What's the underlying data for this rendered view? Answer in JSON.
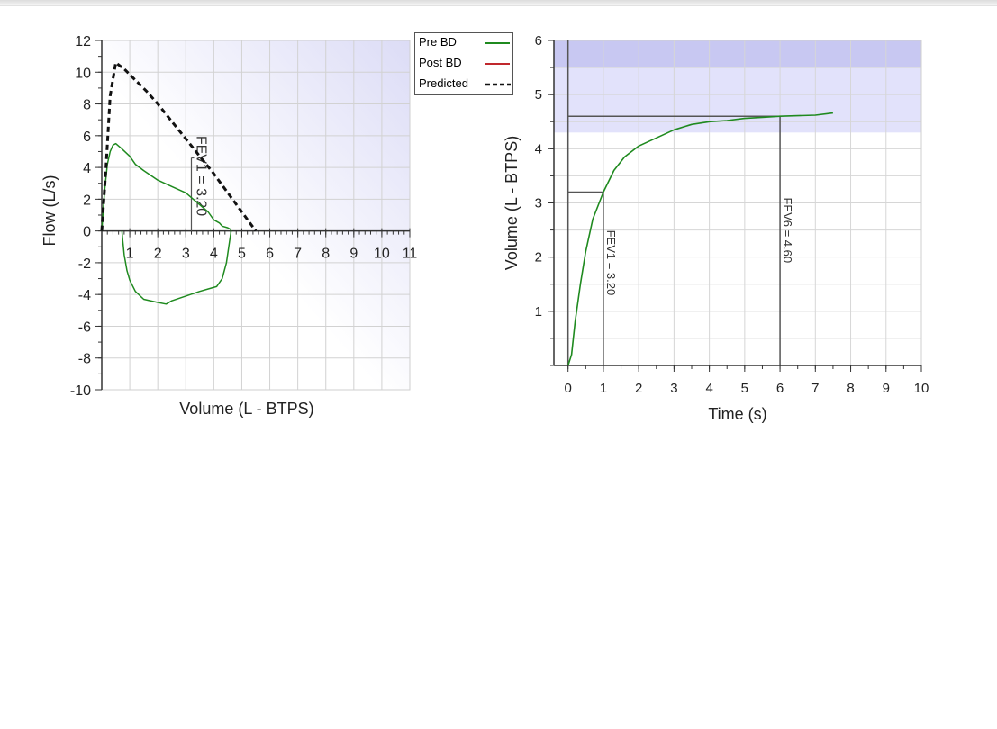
{
  "chart_data": [
    {
      "type": "line",
      "xlabel": "Volume (L - BTPS)",
      "ylabel": "Flow (L/s)",
      "xlim": [
        0,
        11
      ],
      "ylim": [
        -10,
        12
      ],
      "x_ticks": [
        1,
        2,
        3,
        4,
        5,
        6,
        7,
        8,
        9,
        10,
        11
      ],
      "y_ticks": [
        12,
        10,
        8,
        6,
        4,
        2,
        0,
        -2,
        -4,
        -6,
        -8,
        -10
      ],
      "grid": true,
      "legend": {
        "position": "top-right",
        "entries": [
          {
            "label": "Pre BD",
            "color": "#1f8a1f",
            "style": "solid"
          },
          {
            "label": "Post BD",
            "color": "#c0282d",
            "style": "solid"
          },
          {
            "label": "Predicted",
            "color": "#111111",
            "style": "dashed"
          }
        ]
      },
      "series": [
        {
          "name": "Pre BD",
          "color": "#1f8a1f",
          "style": "solid",
          "x": [
            0,
            0.1,
            0.2,
            0.3,
            0.4,
            0.5,
            0.7,
            1.0,
            1.2,
            1.5,
            2.0,
            2.5,
            3.0,
            3.4,
            3.8,
            4.0,
            4.2,
            4.3,
            4.5,
            4.6,
            4.62,
            4.55,
            4.45,
            4.3,
            4.1,
            3.9,
            3.5,
            3.0,
            2.5,
            2.3,
            2.0,
            1.5,
            1.2,
            1.0,
            0.9,
            0.8,
            0.75,
            0.72
          ],
          "y": [
            0,
            2.5,
            4.2,
            5.0,
            5.4,
            5.5,
            5.2,
            4.7,
            4.2,
            3.8,
            3.2,
            2.8,
            2.4,
            1.8,
            1.2,
            0.7,
            0.5,
            0.3,
            0.2,
            0.1,
            0,
            -0.8,
            -2.0,
            -3.0,
            -3.5,
            -3.6,
            -3.8,
            -4.1,
            -4.4,
            -4.6,
            -4.5,
            -4.3,
            -3.8,
            -3.1,
            -2.5,
            -1.5,
            -0.6,
            0
          ]
        },
        {
          "name": "Predicted",
          "color": "#111111",
          "style": "dashed",
          "x": [
            0,
            0.15,
            0.3,
            0.5,
            0.8,
            1.2,
            1.6,
            2.0,
            2.5,
            3.0,
            3.5,
            4.0,
            4.5,
            5.0,
            5.5
          ],
          "y": [
            0,
            4.0,
            8.5,
            10.6,
            10.2,
            9.5,
            8.8,
            8.0,
            6.9,
            5.8,
            4.7,
            3.6,
            2.4,
            1.2,
            0
          ]
        }
      ],
      "annotations": [
        {
          "text": "FEV1 = 3.20",
          "x": 3.2,
          "orientation": "vertical"
        }
      ]
    },
    {
      "type": "line",
      "xlabel": "Time (s)",
      "ylabel": "Volume (L - BTPS)",
      "xlim": [
        -0.4,
        10
      ],
      "ylim": [
        0,
        6
      ],
      "x_ticks": [
        0,
        1,
        2,
        3,
        4,
        5,
        6,
        7,
        8,
        9,
        10
      ],
      "y_ticks": [
        6,
        5,
        4,
        3,
        2,
        1
      ],
      "grid": true,
      "shaded_bands": [
        {
          "y": [
            5.5,
            6
          ],
          "color": "#c8c8f2"
        },
        {
          "y": [
            4.3,
            5.5
          ],
          "color": "#e2e2fb"
        }
      ],
      "series": [
        {
          "name": "Pre BD",
          "color": "#1f8a1f",
          "style": "solid",
          "x": [
            0,
            0.1,
            0.2,
            0.35,
            0.5,
            0.7,
            1.0,
            1.3,
            1.6,
            2.0,
            2.5,
            3.0,
            3.5,
            4.0,
            4.5,
            5.0,
            5.5,
            6.0,
            6.5,
            7.0,
            7.5
          ],
          "y": [
            0,
            0.2,
            0.8,
            1.5,
            2.1,
            2.7,
            3.2,
            3.6,
            3.85,
            4.05,
            4.2,
            4.35,
            4.45,
            4.5,
            4.52,
            4.56,
            4.58,
            4.6,
            4.61,
            4.62,
            4.66
          ]
        }
      ],
      "annotations": [
        {
          "text": "FEV1 = 3.20",
          "x": 1,
          "y": 3.2,
          "orientation": "vertical"
        },
        {
          "text": "FEV6 = 4.60",
          "x": 6,
          "y": 4.6,
          "orientation": "vertical"
        }
      ]
    }
  ]
}
